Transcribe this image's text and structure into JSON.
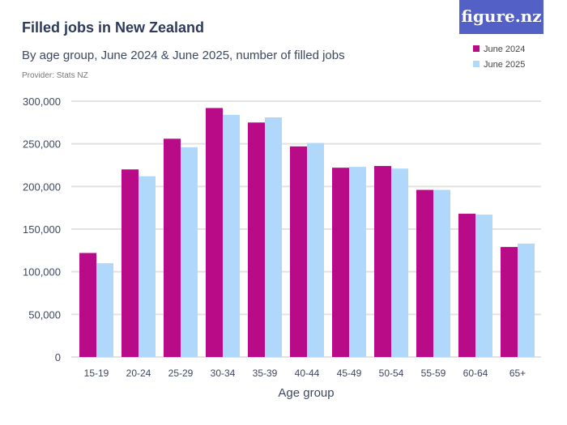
{
  "header": {
    "title": "Filled jobs in New Zealand",
    "subtitle": "By age group, June 2024 & June 2025, number of filled jobs",
    "provider": "Provider: Stats NZ",
    "logo": "figure.nz"
  },
  "chart_data": {
    "type": "bar",
    "title": "Filled jobs in New Zealand",
    "subtitle": "By age group, June 2024 & June 2025, number of filled jobs",
    "xlabel": "Age group",
    "ylabel": "",
    "ylim": [
      0,
      300000
    ],
    "yticks": [
      0,
      50000,
      100000,
      150000,
      200000,
      250000,
      300000
    ],
    "ytick_labels": [
      "0",
      "50,000",
      "100,000",
      "150,000",
      "200,000",
      "250,000",
      "300,000"
    ],
    "grid": true,
    "legend_position": "top-right",
    "categories": [
      "15-19",
      "20-24",
      "25-29",
      "30-34",
      "35-39",
      "40-44",
      "45-49",
      "50-54",
      "55-59",
      "60-64",
      "65+"
    ],
    "series": [
      {
        "name": "June 2024",
        "color": "#b90b88",
        "values": [
          122000,
          220000,
          256000,
          292000,
          275000,
          247000,
          222000,
          224000,
          196000,
          168000,
          129000
        ]
      },
      {
        "name": "June 2025",
        "color": "#afd8fb",
        "values": [
          110000,
          212000,
          246000,
          284000,
          281000,
          251000,
          223000,
          221000,
          196000,
          167000,
          133000
        ]
      }
    ]
  }
}
